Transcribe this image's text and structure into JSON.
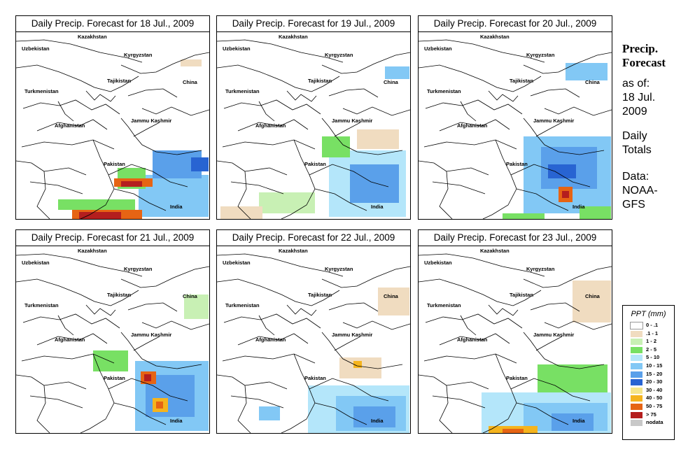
{
  "panels": [
    {
      "title": "Daily Precip. Forecast for  18 Jul., 2009"
    },
    {
      "title": "Daily Precip. Forecast for  19 Jul., 2009"
    },
    {
      "title": "Daily Precip. Forecast for  20 Jul., 2009"
    },
    {
      "title": "Daily Precip. Forecast for  21 Jul., 2009"
    },
    {
      "title": "Daily Precip. Forecast for  22 Jul., 2009"
    },
    {
      "title": "Daily Precip. Forecast for  23 Jul., 2009"
    }
  ],
  "map_labels": [
    "Kazakhstan",
    "Uzbekistan",
    "Kyrgyzstan",
    "Tajikistan",
    "China",
    "Turkmenistan",
    "Jammu Kashmir",
    "Afghanistan",
    "Pakistan",
    "India"
  ],
  "side": {
    "title": "Precip. Forecast",
    "as_of_label": "as of:",
    "date_line1": "18 Jul.",
    "date_line2": "2009",
    "totals_line1": "Daily",
    "totals_line2": "Totals",
    "data_label": "Data:",
    "source_line1": "NOAA-",
    "source_line2": "GFS"
  },
  "legend": {
    "title": "PPT (mm)",
    "items": [
      {
        "label": "0 - .1",
        "color": "#ffffff"
      },
      {
        "label": ".1 - 1",
        "color": "#f0dcc0"
      },
      {
        "label": "1 - 2",
        "color": "#c8f0b4"
      },
      {
        "label": "2 - 5",
        "color": "#78e064"
      },
      {
        "label": "5 - 10",
        "color": "#b4e6fa"
      },
      {
        "label": "10 - 15",
        "color": "#82c8f5"
      },
      {
        "label": "15 - 20",
        "color": "#5aa0ea"
      },
      {
        "label": "20 - 30",
        "color": "#2864d2"
      },
      {
        "label": "30 - 40",
        "color": "#f5e68c"
      },
      {
        "label": "40 - 50",
        "color": "#f5b41e"
      },
      {
        "label": "50 - 75",
        "color": "#e66414"
      },
      {
        "label": "> 75",
        "color": "#b41e1e"
      },
      {
        "label": "nodata",
        "color": "#c8c8c8"
      }
    ]
  }
}
